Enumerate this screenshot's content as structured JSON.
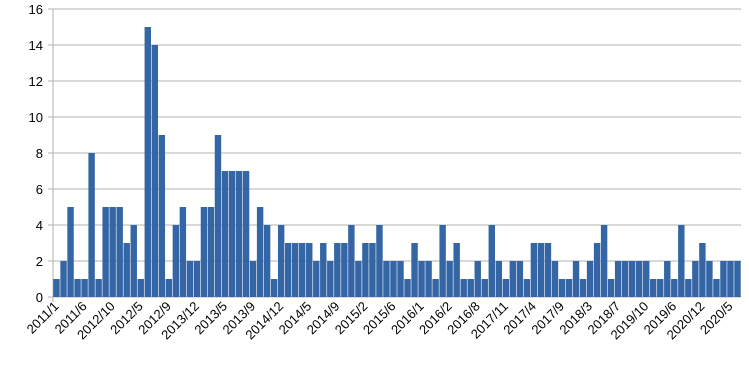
{
  "chart_data": {
    "type": "bar",
    "color": "#3465a4",
    "grid": true,
    "categories": [
      "2011/1",
      null,
      null,
      null,
      "2011/6",
      null,
      null,
      null,
      "2012/10",
      null,
      null,
      null,
      "2012/5",
      null,
      null,
      null,
      "2012/9",
      null,
      null,
      null,
      "2013/12",
      null,
      null,
      null,
      "2013/5",
      null,
      null,
      null,
      "2013/9",
      null,
      null,
      null,
      "2014/12",
      null,
      null,
      null,
      "2014/5",
      null,
      null,
      null,
      "2014/9",
      null,
      null,
      null,
      "2015/2",
      null,
      null,
      null,
      "2015/6",
      null,
      null,
      null,
      "2016/1",
      null,
      null,
      null,
      "2016/2",
      null,
      null,
      null,
      "2016/8",
      null,
      null,
      null,
      "2017/11",
      null,
      null,
      null,
      "2017/4",
      null,
      null,
      null,
      "2017/9",
      null,
      null,
      null,
      "2018/3",
      null,
      null,
      null,
      "2018/7",
      null,
      null,
      null,
      "2019/10",
      null,
      null,
      null,
      "2019/6",
      null,
      null,
      null,
      "2020/12",
      null,
      null,
      null,
      "2020/5",
      null
    ],
    "values": [
      1,
      2,
      5,
      1,
      1,
      8,
      1,
      5,
      5,
      5,
      3,
      4,
      1,
      15,
      14,
      9,
      1,
      4,
      5,
      2,
      2,
      5,
      5,
      9,
      7,
      7,
      7,
      7,
      2,
      5,
      4,
      1,
      4,
      3,
      3,
      3,
      3,
      2,
      3,
      2,
      3,
      3,
      4,
      2,
      3,
      3,
      4,
      2,
      2,
      2,
      1,
      3,
      2,
      2,
      1,
      4,
      2,
      3,
      1,
      1,
      2,
      1,
      4,
      2,
      1,
      2,
      2,
      1,
      3,
      3,
      3,
      2,
      1,
      1,
      2,
      1,
      2,
      3,
      4,
      1,
      2,
      2,
      2,
      2,
      2,
      1,
      1,
      2,
      1,
      4,
      1,
      2,
      3,
      2,
      1,
      2,
      2,
      2
    ],
    "ylim": [
      0,
      16
    ],
    "yticks": [
      0,
      2,
      4,
      6,
      8,
      10,
      12,
      14,
      16
    ]
  }
}
